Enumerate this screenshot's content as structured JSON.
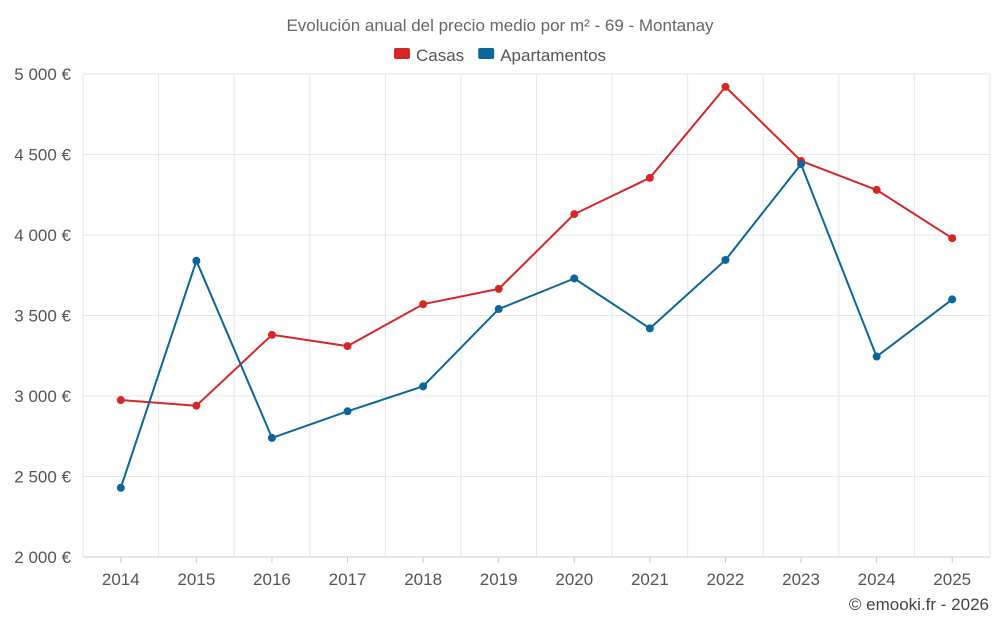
{
  "chart_data": {
    "type": "line",
    "title": "Evolución anual del precio medio por m² - 69 - Montanay",
    "categories": [
      "2014",
      "2015",
      "2016",
      "2017",
      "2018",
      "2019",
      "2020",
      "2021",
      "2022",
      "2023",
      "2024",
      "2025"
    ],
    "series": [
      {
        "name": "Casas",
        "color": "#d62728",
        "values": [
          2975,
          2940,
          3380,
          3310,
          3570,
          3665,
          4130,
          4355,
          4920,
          4460,
          4280,
          3980
        ]
      },
      {
        "name": "Apartamentos",
        "color": "#0d6699",
        "values": [
          2430,
          3840,
          2740,
          2905,
          3060,
          3540,
          3730,
          3420,
          3845,
          4440,
          3245,
          3600
        ]
      }
    ],
    "ylim": [
      2000,
      5000
    ],
    "yticks": [
      2000,
      2500,
      3000,
      3500,
      4000,
      4500,
      5000
    ],
    "ytick_labels": [
      "2 000 €",
      "2 500 €",
      "3 000 €",
      "3 500 €",
      "4 000 €",
      "4 500 €",
      "5 000 €"
    ],
    "xlabel": "",
    "ylabel": "",
    "grid": true,
    "legend_position": "top-center"
  },
  "credit": "© emooki.fr - 2026"
}
